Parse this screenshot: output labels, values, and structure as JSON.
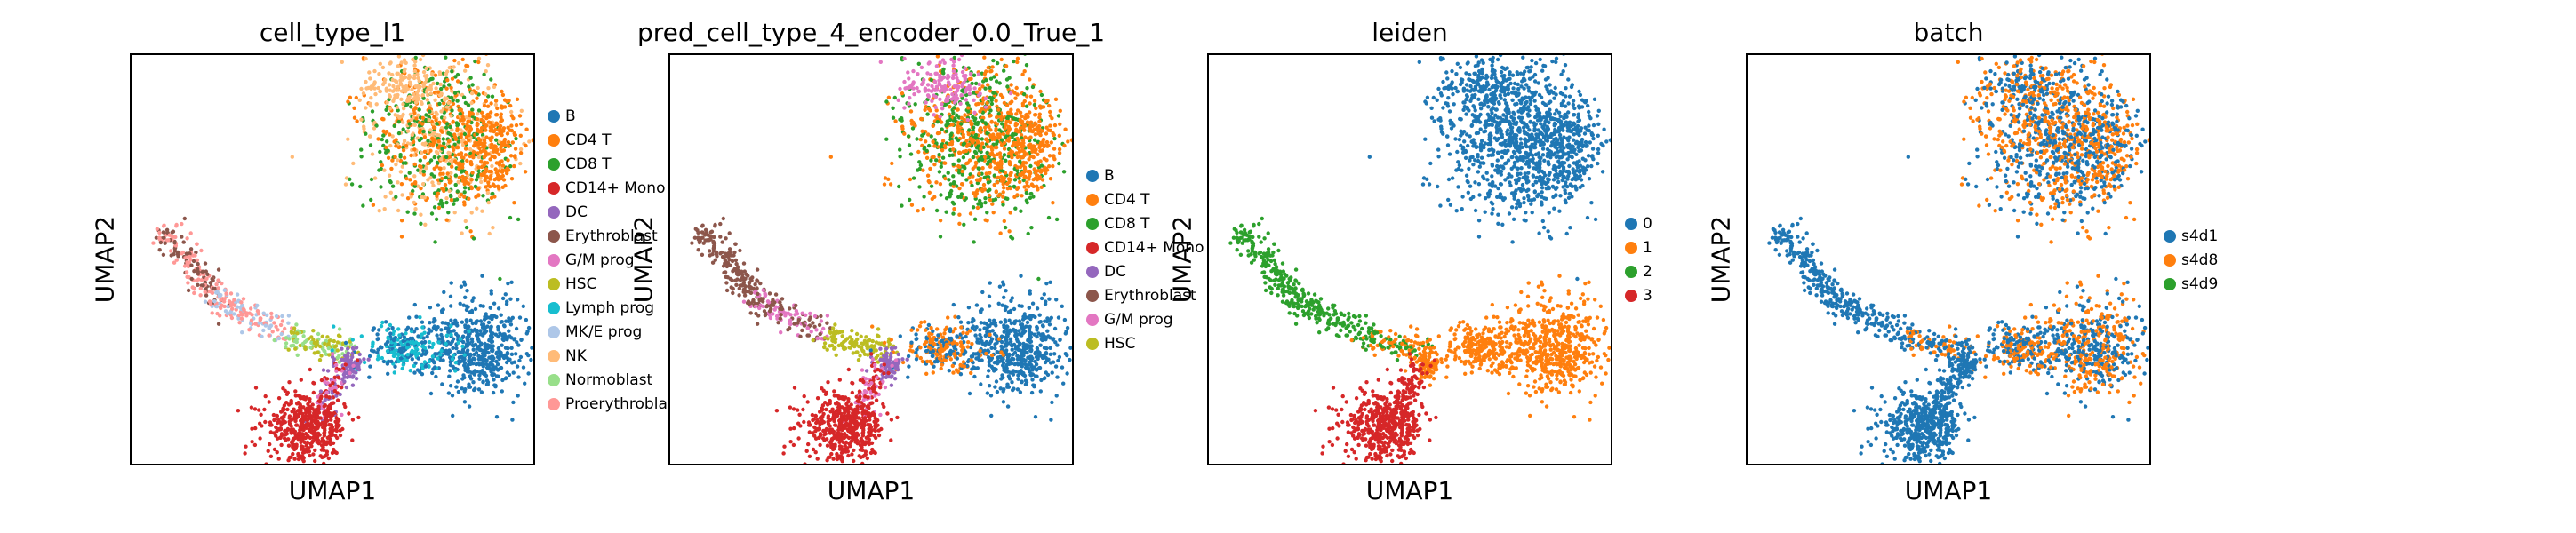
{
  "chart_data": [
    {
      "type": "scatter",
      "title": "cell_type_l1",
      "xlabel": "UMAP1",
      "ylabel": "UMAP2",
      "legend_position": "right",
      "categories": [
        "B",
        "CD4 T",
        "CD8 T",
        "CD14+ Mono",
        "DC",
        "Erythroblast",
        "G/M prog",
        "HSC",
        "Lymph prog",
        "MK/E prog",
        "NK",
        "Normoblast",
        "Proerythroblast"
      ],
      "colors": [
        "#1f77b4",
        "#ff7f0e",
        "#2ca02c",
        "#d62728",
        "#9467bd",
        "#8c564b",
        "#e377c2",
        "#bcbd22",
        "#17becf",
        "#aec7e8",
        "#ffbb78",
        "#98df8a",
        "#ff9896"
      ]
    },
    {
      "type": "scatter",
      "title": "pred_cell_type_4_encoder_0.0_True_1",
      "xlabel": "UMAP1",
      "ylabel": "UMAP2",
      "legend_position": "right",
      "categories": [
        "B",
        "CD4 T",
        "CD8 T",
        "CD14+ Mono",
        "DC",
        "Erythroblast",
        "G/M prog",
        "HSC"
      ],
      "colors": [
        "#1f77b4",
        "#ff7f0e",
        "#2ca02c",
        "#d62728",
        "#9467bd",
        "#8c564b",
        "#e377c2",
        "#bcbd22"
      ]
    },
    {
      "type": "scatter",
      "title": "leiden",
      "xlabel": "UMAP1",
      "ylabel": "UMAP2",
      "legend_position": "right",
      "categories": [
        "0",
        "1",
        "2",
        "3"
      ],
      "colors": [
        "#1f77b4",
        "#ff7f0e",
        "#2ca02c",
        "#d62728"
      ]
    },
    {
      "type": "scatter",
      "title": "batch",
      "xlabel": "UMAP1",
      "ylabel": "UMAP2",
      "legend_position": "right",
      "categories": [
        "s4d1",
        "s4d8",
        "s4d9"
      ],
      "colors": [
        "#1f77b4",
        "#ff7f0e",
        "#2ca02c"
      ]
    }
  ]
}
